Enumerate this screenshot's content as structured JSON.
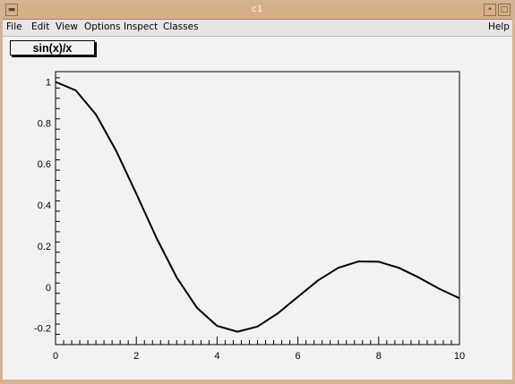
{
  "window": {
    "title": "c1"
  },
  "menu": {
    "file": "File",
    "edit": "Edit",
    "view": "View",
    "options": "Options",
    "inspect": "Inspect",
    "classes": "Classes",
    "help": "Help"
  },
  "canvas": {
    "function_label": "sin(x)/x"
  },
  "chart_data": {
    "type": "line",
    "title": "sin(x)/x",
    "xlabel": "",
    "ylabel": "",
    "xlim": [
      0,
      10
    ],
    "ylim": [
      -0.28,
      1.05
    ],
    "x_ticks": [
      "0",
      "2",
      "4",
      "6",
      "8",
      "10"
    ],
    "y_ticks": [
      "-0.2",
      "0",
      "0.2",
      "0.4",
      "0.6",
      "0.8",
      "1"
    ],
    "grid": false,
    "series": [
      {
        "function": "sin(x)/x",
        "x": [
          0,
          0.5,
          1,
          1.5,
          2,
          2.5,
          3,
          3.5,
          4,
          4.5,
          5,
          5.5,
          6,
          6.5,
          7,
          7.5,
          8,
          8.5,
          9,
          9.5,
          10
        ],
        "values": [
          1,
          0.959,
          0.841,
          0.665,
          0.455,
          0.239,
          0.047,
          -0.1,
          -0.189,
          -0.217,
          -0.192,
          -0.128,
          -0.047,
          0.033,
          0.094,
          0.125,
          0.124,
          0.094,
          0.046,
          -0.008,
          -0.054
        ]
      }
    ]
  }
}
